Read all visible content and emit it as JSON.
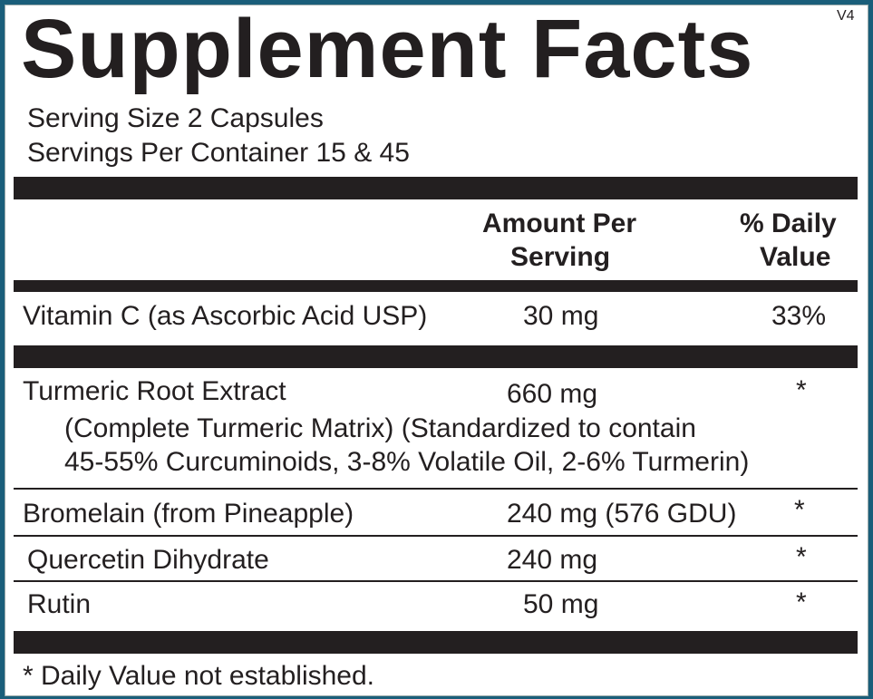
{
  "title": "Supplement Facts",
  "version": "V4",
  "serving_size": "Serving Size 2 Capsules",
  "servings_per_container": "Servings Per Container 15  & 45",
  "headers": {
    "amount_1": "Amount Per",
    "amount_2": "Serving",
    "dv_1": "% Daily",
    "dv_2": "Value"
  },
  "rows": [
    {
      "name": "Vitamin C (as Ascorbic Acid USP)",
      "amount": "30 mg",
      "dv": "33%"
    },
    {
      "name": "Turmeric Root Extract",
      "amount": "660 mg",
      "dv": "*",
      "detail_1": "(Complete Turmeric Matrix) (Standardized to contain",
      "detail_2": "45-55% Curcuminoids, 3-8% Volatile Oil, 2-6% Turmerin)"
    },
    {
      "name": "Bromelain (from Pineapple)",
      "amount": "240 mg (576 GDU)",
      "dv": "*"
    },
    {
      "name": "Quercetin Dihydrate",
      "amount": "240 mg",
      "dv": "*"
    },
    {
      "name": "Rutin",
      "amount": "50 mg",
      "dv": "*"
    }
  ],
  "footnote": "* Daily Value not established.",
  "colors": {
    "border": "#1a5e7a",
    "ink": "#231f20"
  }
}
